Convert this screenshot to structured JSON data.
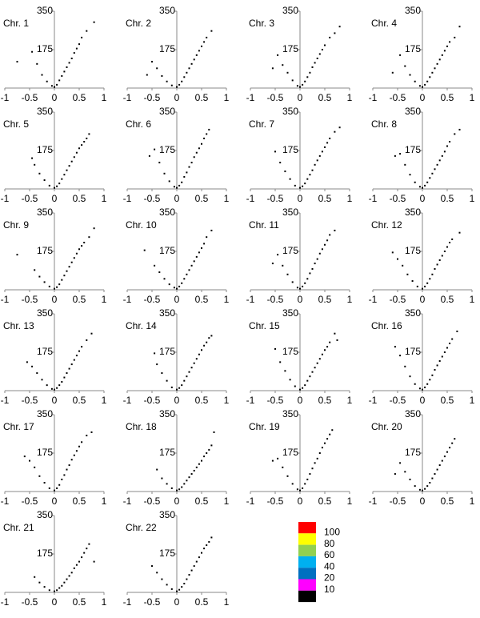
{
  "chart_data": [
    {
      "type": "scatter",
      "title": "Chr. 1",
      "color": "#000000",
      "xlim": [
        -1,
        1
      ],
      "ylim": [
        0,
        350
      ],
      "xticks": [
        -1,
        -0.5,
        0,
        0.5,
        1
      ],
      "yticks": [
        175,
        350
      ],
      "x": [
        -0.75,
        -0.45,
        -0.35,
        -0.25,
        -0.15,
        -0.05,
        0,
        0.05,
        0.1,
        0.15,
        0.2,
        0.25,
        0.3,
        0.35,
        0.4,
        0.45,
        0.5,
        0.55,
        0.65,
        0.8
      ],
      "y": [
        120,
        165,
        110,
        60,
        30,
        10,
        5,
        15,
        35,
        55,
        75,
        95,
        115,
        135,
        160,
        180,
        200,
        230,
        260,
        300
      ]
    },
    {
      "type": "scatter",
      "title": "Chr. 2",
      "color": "#000000",
      "xlim": [
        -1,
        1
      ],
      "ylim": [
        0,
        350
      ],
      "xticks": [
        -1,
        -0.5,
        0,
        0.5,
        1
      ],
      "yticks": [
        175,
        350
      ],
      "x": [
        -0.6,
        -0.5,
        -0.4,
        -0.3,
        -0.2,
        -0.1,
        0,
        0.05,
        0.1,
        0.15,
        0.2,
        0.25,
        0.3,
        0.35,
        0.4,
        0.45,
        0.5,
        0.55,
        0.6,
        0.7
      ],
      "y": [
        60,
        120,
        90,
        55,
        30,
        12,
        5,
        15,
        30,
        50,
        70,
        90,
        110,
        130,
        150,
        170,
        190,
        210,
        230,
        260
      ]
    },
    {
      "type": "scatter",
      "title": "Chr. 3",
      "color": "#000000",
      "xlim": [
        -1,
        1
      ],
      "ylim": [
        0,
        350
      ],
      "xticks": [
        -1,
        -0.5,
        0,
        0.5,
        1
      ],
      "yticks": [
        175,
        350
      ],
      "x": [
        -0.55,
        -0.45,
        -0.35,
        -0.25,
        -0.15,
        -0.05,
        0,
        0.05,
        0.1,
        0.15,
        0.2,
        0.25,
        0.3,
        0.35,
        0.4,
        0.45,
        0.5,
        0.6,
        0.7,
        0.8
      ],
      "y": [
        90,
        150,
        105,
        70,
        35,
        10,
        5,
        15,
        30,
        50,
        70,
        95,
        115,
        135,
        155,
        175,
        195,
        230,
        250,
        280
      ]
    },
    {
      "type": "scatter",
      "title": "Chr. 4",
      "color": "#000000",
      "xlim": [
        -1,
        1
      ],
      "ylim": [
        0,
        350
      ],
      "xticks": [
        -1,
        -0.5,
        0,
        0.5,
        1
      ],
      "yticks": [
        175,
        350
      ],
      "x": [
        -0.6,
        -0.45,
        -0.35,
        -0.25,
        -0.15,
        -0.05,
        0,
        0.05,
        0.1,
        0.15,
        0.2,
        0.25,
        0.3,
        0.35,
        0.4,
        0.45,
        0.5,
        0.55,
        0.65,
        0.75
      ],
      "y": [
        70,
        150,
        100,
        60,
        30,
        10,
        5,
        15,
        30,
        50,
        70,
        90,
        110,
        130,
        150,
        170,
        190,
        210,
        230,
        280
      ]
    },
    {
      "type": "scatter",
      "title": "Chr. 5",
      "color": "#000000",
      "xlim": [
        -1,
        1
      ],
      "ylim": [
        0,
        350
      ],
      "xticks": [
        -1,
        -0.5,
        0,
        0.5,
        1
      ],
      "yticks": [
        175,
        350
      ],
      "x": [
        -0.45,
        -0.4,
        -0.3,
        -0.2,
        -0.1,
        0,
        0.05,
        0.1,
        0.15,
        0.2,
        0.25,
        0.3,
        0.35,
        0.4,
        0.45,
        0.5,
        0.55,
        0.6,
        0.65,
        0.7
      ],
      "y": [
        140,
        110,
        70,
        40,
        15,
        5,
        12,
        25,
        45,
        65,
        85,
        105,
        125,
        145,
        165,
        185,
        200,
        215,
        230,
        250
      ]
    },
    {
      "type": "scatter",
      "title": "Chr. 6",
      "color": "#000000",
      "xlim": [
        -1,
        1
      ],
      "ylim": [
        0,
        350
      ],
      "xticks": [
        -1,
        -0.5,
        0,
        0.5,
        1
      ],
      "yticks": [
        175,
        350
      ],
      "x": [
        -0.55,
        -0.45,
        -0.35,
        -0.25,
        -0.15,
        -0.05,
        0,
        0.05,
        0.1,
        0.15,
        0.2,
        0.25,
        0.3,
        0.35,
        0.4,
        0.45,
        0.5,
        0.55,
        0.6,
        0.65
      ],
      "y": [
        150,
        180,
        120,
        70,
        35,
        10,
        5,
        15,
        30,
        55,
        75,
        100,
        120,
        145,
        165,
        185,
        205,
        230,
        250,
        270
      ]
    },
    {
      "type": "scatter",
      "title": "Chr. 7",
      "color": "#000000",
      "xlim": [
        -1,
        1
      ],
      "ylim": [
        0,
        350
      ],
      "xticks": [
        -1,
        -0.5,
        0,
        0.5,
        1
      ],
      "yticks": [
        175,
        350
      ],
      "x": [
        -0.5,
        -0.4,
        -0.3,
        -0.2,
        -0.1,
        0,
        0.05,
        0.1,
        0.15,
        0.2,
        0.25,
        0.3,
        0.35,
        0.4,
        0.45,
        0.5,
        0.55,
        0.6,
        0.7,
        0.8
      ],
      "y": [
        170,
        120,
        80,
        45,
        15,
        5,
        12,
        25,
        45,
        65,
        85,
        110,
        130,
        150,
        170,
        190,
        210,
        230,
        260,
        280
      ]
    },
    {
      "type": "scatter",
      "title": "Chr. 8",
      "color": "#000000",
      "xlim": [
        -1,
        1
      ],
      "ylim": [
        0,
        350
      ],
      "xticks": [
        -1,
        -0.5,
        0,
        0.5,
        1
      ],
      "yticks": [
        175,
        350
      ],
      "x": [
        -0.55,
        -0.45,
        -0.35,
        -0.25,
        -0.15,
        -0.05,
        0,
        0.05,
        0.1,
        0.15,
        0.2,
        0.25,
        0.3,
        0.35,
        0.4,
        0.45,
        0.5,
        0.55,
        0.65,
        0.75
      ],
      "y": [
        150,
        160,
        110,
        65,
        30,
        10,
        5,
        15,
        30,
        50,
        70,
        90,
        110,
        130,
        150,
        170,
        195,
        215,
        250,
        270
      ]
    },
    {
      "type": "scatter",
      "title": "Chr. 9",
      "color": "#000000",
      "xlim": [
        -1,
        1
      ],
      "ylim": [
        0,
        350
      ],
      "xticks": [
        -1,
        -0.5,
        0,
        0.5,
        1
      ],
      "yticks": [
        175,
        350
      ],
      "x": [
        -0.75,
        -0.4,
        -0.3,
        -0.2,
        -0.1,
        0,
        0.05,
        0.1,
        0.15,
        0.2,
        0.25,
        0.3,
        0.35,
        0.4,
        0.45,
        0.5,
        0.55,
        0.6,
        0.7,
        0.8
      ],
      "y": [
        160,
        90,
        60,
        35,
        15,
        5,
        12,
        25,
        45,
        65,
        85,
        105,
        125,
        145,
        165,
        185,
        200,
        215,
        240,
        280
      ]
    },
    {
      "type": "scatter",
      "title": "Chr. 10",
      "color": "#000000",
      "xlim": [
        -1,
        1
      ],
      "ylim": [
        0,
        350
      ],
      "xticks": [
        -1,
        -0.5,
        0,
        0.5,
        1
      ],
      "yticks": [
        175,
        350
      ],
      "x": [
        -0.65,
        -0.45,
        -0.35,
        -0.25,
        -0.15,
        -0.05,
        0,
        0.05,
        0.1,
        0.15,
        0.2,
        0.25,
        0.3,
        0.35,
        0.4,
        0.45,
        0.5,
        0.55,
        0.6,
        0.7
      ],
      "y": [
        180,
        110,
        80,
        50,
        25,
        10,
        5,
        15,
        30,
        50,
        70,
        90,
        110,
        130,
        150,
        170,
        190,
        210,
        240,
        270
      ]
    },
    {
      "type": "scatter",
      "title": "Chr. 11",
      "color": "#000000",
      "xlim": [
        -1,
        1
      ],
      "ylim": [
        0,
        350
      ],
      "xticks": [
        -1,
        -0.5,
        0,
        0.5,
        1
      ],
      "yticks": [
        175,
        350
      ],
      "x": [
        -0.55,
        -0.45,
        -0.35,
        -0.25,
        -0.15,
        -0.05,
        0,
        0.05,
        0.1,
        0.15,
        0.2,
        0.25,
        0.3,
        0.35,
        0.4,
        0.45,
        0.5,
        0.55,
        0.6,
        0.7
      ],
      "y": [
        120,
        160,
        110,
        70,
        35,
        10,
        5,
        15,
        30,
        50,
        75,
        95,
        120,
        140,
        165,
        185,
        205,
        225,
        250,
        270
      ]
    },
    {
      "type": "scatter",
      "title": "Chr. 12",
      "color": "#000000",
      "xlim": [
        -1,
        1
      ],
      "ylim": [
        0,
        350
      ],
      "xticks": [
        -1,
        -0.5,
        0,
        0.5,
        1
      ],
      "yticks": [
        175,
        350
      ],
      "x": [
        -0.6,
        -0.5,
        -0.4,
        -0.3,
        -0.2,
        -0.1,
        0,
        0.05,
        0.1,
        0.15,
        0.2,
        0.25,
        0.3,
        0.35,
        0.4,
        0.45,
        0.5,
        0.55,
        0.6,
        0.75
      ],
      "y": [
        170,
        140,
        110,
        70,
        40,
        15,
        5,
        15,
        30,
        50,
        70,
        95,
        115,
        135,
        155,
        175,
        195,
        215,
        230,
        260
      ]
    },
    {
      "type": "scatter",
      "title": "Chr. 13",
      "color": "#000000",
      "xlim": [
        -1,
        1
      ],
      "ylim": [
        0,
        350
      ],
      "xticks": [
        -1,
        -0.5,
        0,
        0.5,
        1
      ],
      "yticks": [
        175,
        350
      ],
      "x": [
        -0.55,
        -0.45,
        -0.35,
        -0.25,
        -0.15,
        -0.05,
        0,
        0.05,
        0.1,
        0.15,
        0.2,
        0.25,
        0.3,
        0.35,
        0.4,
        0.45,
        0.5,
        0.55,
        0.65,
        0.75
      ],
      "y": [
        130,
        110,
        80,
        50,
        25,
        8,
        5,
        12,
        25,
        40,
        60,
        80,
        100,
        120,
        140,
        160,
        180,
        200,
        230,
        260
      ]
    },
    {
      "type": "scatter",
      "title": "Chr. 14",
      "color": "#000000",
      "xlim": [
        -1,
        1
      ],
      "ylim": [
        0,
        350
      ],
      "xticks": [
        -1,
        -0.5,
        0,
        0.5,
        1
      ],
      "yticks": [
        175,
        350
      ],
      "x": [
        -0.45,
        -0.4,
        -0.3,
        -0.2,
        -0.1,
        0,
        0.05,
        0.1,
        0.15,
        0.2,
        0.25,
        0.3,
        0.35,
        0.4,
        0.45,
        0.5,
        0.55,
        0.6,
        0.65,
        0.7
      ],
      "y": [
        170,
        120,
        80,
        45,
        15,
        5,
        12,
        25,
        45,
        65,
        85,
        105,
        125,
        145,
        165,
        185,
        205,
        220,
        240,
        250
      ]
    },
    {
      "type": "scatter",
      "title": "Chr. 15",
      "color": "#000000",
      "xlim": [
        -1,
        1
      ],
      "ylim": [
        0,
        350
      ],
      "xticks": [
        -1,
        -0.5,
        0,
        0.5,
        1
      ],
      "yticks": [
        175,
        350
      ],
      "x": [
        -0.5,
        -0.4,
        -0.3,
        -0.2,
        -0.1,
        0,
        0.05,
        0.1,
        0.15,
        0.2,
        0.25,
        0.3,
        0.35,
        0.4,
        0.45,
        0.5,
        0.55,
        0.6,
        0.7,
        0.75
      ],
      "y": [
        190,
        130,
        90,
        50,
        20,
        5,
        12,
        25,
        45,
        65,
        85,
        105,
        125,
        145,
        165,
        185,
        200,
        220,
        260,
        230
      ]
    },
    {
      "type": "scatter",
      "title": "Chr. 16",
      "color": "#000000",
      "xlim": [
        -1,
        1
      ],
      "ylim": [
        0,
        350
      ],
      "xticks": [
        -1,
        -0.5,
        0,
        0.5,
        1
      ],
      "yticks": [
        175,
        350
      ],
      "x": [
        -0.55,
        -0.45,
        -0.35,
        -0.25,
        -0.15,
        -0.05,
        0,
        0.05,
        0.1,
        0.15,
        0.2,
        0.25,
        0.3,
        0.35,
        0.4,
        0.45,
        0.5,
        0.55,
        0.6,
        0.7
      ],
      "y": [
        200,
        160,
        110,
        65,
        30,
        10,
        5,
        15,
        30,
        50,
        70,
        95,
        115,
        135,
        155,
        175,
        195,
        215,
        235,
        270
      ]
    },
    {
      "type": "scatter",
      "title": "Chr. 17",
      "color": "#000000",
      "xlim": [
        -1,
        1
      ],
      "ylim": [
        0,
        350
      ],
      "xticks": [
        -1,
        -0.5,
        0,
        0.5,
        1
      ],
      "yticks": [
        175,
        350
      ],
      "x": [
        -0.6,
        -0.5,
        -0.4,
        -0.3,
        -0.2,
        -0.1,
        0,
        0.05,
        0.1,
        0.15,
        0.2,
        0.25,
        0.3,
        0.35,
        0.4,
        0.45,
        0.5,
        0.55,
        0.65,
        0.75
      ],
      "y": [
        160,
        140,
        110,
        70,
        40,
        15,
        5,
        15,
        30,
        55,
        75,
        100,
        120,
        145,
        165,
        185,
        205,
        225,
        255,
        270
      ]
    },
    {
      "type": "scatter",
      "title": "Chr. 18",
      "color": "#000000",
      "xlim": [
        -1,
        1
      ],
      "ylim": [
        0,
        350
      ],
      "xticks": [
        -1,
        -0.5,
        0,
        0.5,
        1
      ],
      "yticks": [
        175,
        350
      ],
      "x": [
        -0.4,
        -0.3,
        -0.2,
        -0.1,
        0,
        0.05,
        0.1,
        0.15,
        0.2,
        0.25,
        0.3,
        0.35,
        0.4,
        0.45,
        0.5,
        0.55,
        0.6,
        0.65,
        0.7,
        0.75
      ],
      "y": [
        100,
        60,
        35,
        15,
        5,
        10,
        20,
        35,
        50,
        65,
        80,
        95,
        110,
        125,
        140,
        160,
        175,
        190,
        210,
        270
      ]
    },
    {
      "type": "scatter",
      "title": "Chr. 19",
      "color": "#000000",
      "xlim": [
        -1,
        1
      ],
      "ylim": [
        0,
        350
      ],
      "xticks": [
        -1,
        -0.5,
        0,
        0.5,
        1
      ],
      "yticks": [
        175,
        350
      ],
      "x": [
        -0.55,
        -0.45,
        -0.35,
        -0.25,
        -0.15,
        -0.05,
        0,
        0.05,
        0.1,
        0.15,
        0.2,
        0.25,
        0.3,
        0.35,
        0.4,
        0.45,
        0.5,
        0.55,
        0.6,
        0.65
      ],
      "y": [
        140,
        150,
        110,
        70,
        35,
        10,
        5,
        15,
        35,
        55,
        80,
        105,
        130,
        150,
        175,
        200,
        220,
        240,
        260,
        280
      ]
    },
    {
      "type": "scatter",
      "title": "Chr. 20",
      "color": "#000000",
      "xlim": [
        -1,
        1
      ],
      "ylim": [
        0,
        350
      ],
      "xticks": [
        -1,
        -0.5,
        0,
        0.5,
        1
      ],
      "yticks": [
        175,
        350
      ],
      "x": [
        -0.55,
        -0.45,
        -0.35,
        -0.25,
        -0.15,
        -0.05,
        0,
        0.05,
        0.1,
        0.15,
        0.2,
        0.25,
        0.3,
        0.35,
        0.4,
        0.45,
        0.5,
        0.55,
        0.6,
        0.65
      ],
      "y": [
        80,
        130,
        90,
        55,
        25,
        8,
        5,
        12,
        25,
        40,
        60,
        80,
        100,
        120,
        140,
        160,
        180,
        200,
        220,
        240
      ]
    },
    {
      "type": "scatter",
      "title": "Chr. 21",
      "color": "#000000",
      "xlim": [
        -1,
        1
      ],
      "ylim": [
        0,
        350
      ],
      "xticks": [
        -1,
        -0.5,
        0,
        0.5,
        1
      ],
      "yticks": [
        175,
        350
      ],
      "x": [
        -0.4,
        -0.3,
        -0.2,
        -0.1,
        0,
        0.05,
        0.1,
        0.15,
        0.2,
        0.25,
        0.3,
        0.35,
        0.4,
        0.45,
        0.5,
        0.55,
        0.6,
        0.65,
        0.7,
        0.8
      ],
      "y": [
        70,
        45,
        25,
        10,
        5,
        10,
        20,
        30,
        45,
        60,
        75,
        90,
        110,
        125,
        140,
        160,
        180,
        200,
        220,
        140
      ]
    },
    {
      "type": "scatter",
      "title": "Chr. 22",
      "color": "#000000",
      "xlim": [
        -1,
        1
      ],
      "ylim": [
        0,
        350
      ],
      "xticks": [
        -1,
        -0.5,
        0,
        0.5,
        1
      ],
      "yticks": [
        175,
        350
      ],
      "x": [
        -0.5,
        -0.4,
        -0.3,
        -0.2,
        -0.1,
        0,
        0.05,
        0.1,
        0.15,
        0.2,
        0.25,
        0.3,
        0.35,
        0.4,
        0.45,
        0.5,
        0.55,
        0.6,
        0.65,
        0.7
      ],
      "y": [
        120,
        90,
        60,
        35,
        15,
        5,
        12,
        25,
        40,
        60,
        80,
        100,
        120,
        140,
        160,
        180,
        200,
        215,
        230,
        250
      ]
    }
  ],
  "color_scale": {
    "labels": [
      100,
      80,
      60,
      40,
      20,
      10
    ],
    "colors": [
      "#ff0000",
      "#ffff00",
      "#92d050",
      "#00b0f0",
      "#0070c0",
      "#ff00ff",
      "#000000"
    ]
  }
}
